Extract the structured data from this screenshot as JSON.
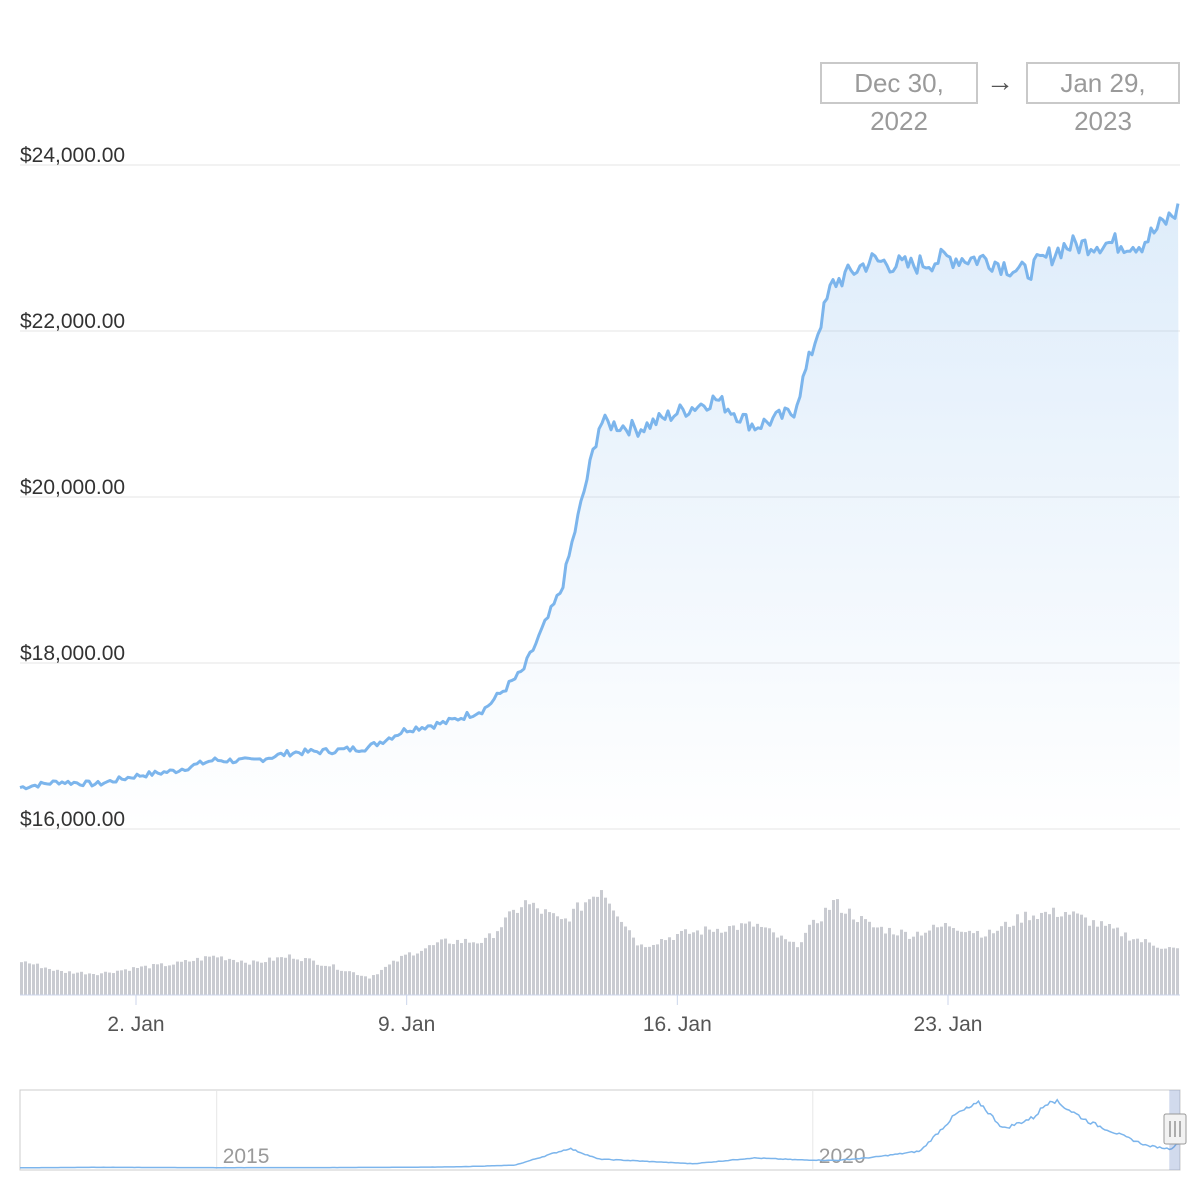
{
  "range_selector": {
    "from": "Dec 30, 2022",
    "arrow": "→",
    "to": "Jan 29, 2023"
  },
  "colors": {
    "price_line": "#7cb5ec",
    "volume_bar": "#c9cbd1",
    "grid": "#e6e6e6",
    "navigator_line": "#7cb5ec"
  },
  "chart_data": [
    {
      "type": "area",
      "name": "price",
      "y_tick_labels": [
        "$16,000.00",
        "$18,000.00",
        "$20,000.00",
        "$22,000.00",
        "$24,000.00"
      ],
      "y_ticks": [
        16000,
        18000,
        20000,
        22000,
        24000
      ],
      "ylim": [
        16000,
        24000
      ],
      "xlim": [
        "2022-12-30",
        "2023-01-29"
      ],
      "x_tick_labels": [
        "2. Jan",
        "9. Jan",
        "16. Jan",
        "23. Jan"
      ],
      "x_ticks": [
        "2023-01-02",
        "2023-01-09",
        "2023-01-16",
        "2023-01-23"
      ],
      "grid": true,
      "x": [
        "2022-12-30",
        "2022-12-31",
        "2023-01-01",
        "2023-01-02",
        "2023-01-03",
        "2023-01-04",
        "2023-01-05",
        "2023-01-06",
        "2023-01-07",
        "2023-01-08",
        "2023-01-09",
        "2023-01-10",
        "2023-01-11",
        "2023-01-12",
        "2023-01-13",
        "2023-01-14",
        "2023-01-15",
        "2023-01-16",
        "2023-01-17",
        "2023-01-18",
        "2023-01-19",
        "2023-01-20",
        "2023-01-21",
        "2023-01-22",
        "2023-01-23",
        "2023-01-24",
        "2023-01-25",
        "2023-01-26",
        "2023-01-27",
        "2023-01-28",
        "2023-01-29"
      ],
      "values": [
        16500,
        16570,
        16540,
        16640,
        16700,
        16830,
        16820,
        16920,
        16940,
        16980,
        17200,
        17280,
        17440,
        17900,
        18880,
        20900,
        20820,
        21020,
        21180,
        20850,
        21020,
        22560,
        22850,
        22780,
        22880,
        22870,
        22700,
        23020,
        23060,
        23050,
        23480
      ]
    },
    {
      "type": "bar",
      "name": "volume",
      "x": [
        "2022-12-30",
        "2022-12-31",
        "2023-01-01",
        "2023-01-02",
        "2023-01-03",
        "2023-01-04",
        "2023-01-05",
        "2023-01-06",
        "2023-01-07",
        "2023-01-08",
        "2023-01-09",
        "2023-01-10",
        "2023-01-11",
        "2023-01-12",
        "2023-01-13",
        "2023-01-14",
        "2023-01-15",
        "2023-01-16",
        "2023-01-17",
        "2023-01-18",
        "2023-01-19",
        "2023-01-20",
        "2023-01-21",
        "2023-01-22",
        "2023-01-23",
        "2023-01-24",
        "2023-01-25",
        "2023-01-26",
        "2023-01-27",
        "2023-01-28",
        "2023-01-29"
      ],
      "values": [
        0.35,
        0.24,
        0.22,
        0.28,
        0.32,
        0.4,
        0.33,
        0.4,
        0.3,
        0.18,
        0.42,
        0.55,
        0.55,
        0.95,
        0.75,
        1.1,
        0.5,
        0.62,
        0.68,
        0.72,
        0.5,
        0.95,
        0.7,
        0.62,
        0.72,
        0.62,
        0.82,
        0.85,
        0.7,
        0.55,
        0.45
      ]
    },
    {
      "type": "line",
      "name": "navigator",
      "x_tick_labels": [
        "2015",
        "2020"
      ],
      "x_ticks": [
        2015,
        2020
      ],
      "xlim": [
        2013.35,
        2023.08
      ],
      "x": [
        2013.35,
        2014.0,
        2015.0,
        2016.0,
        2016.5,
        2017.0,
        2017.5,
        2017.96,
        2018.2,
        2018.5,
        2019.0,
        2019.5,
        2019.9,
        2020.2,
        2020.5,
        2020.9,
        2021.2,
        2021.4,
        2021.6,
        2021.85,
        2022.0,
        2022.3,
        2022.5,
        2022.8,
        2023.0,
        2023.08
      ],
      "values": [
        200,
        600,
        300,
        400,
        600,
        1000,
        2500,
        17500,
        8000,
        6500,
        3800,
        9000,
        7200,
        6800,
        9500,
        15000,
        48000,
        58000,
        35000,
        45000,
        62000,
        42000,
        33000,
        20000,
        17000,
        23000
      ]
    }
  ]
}
